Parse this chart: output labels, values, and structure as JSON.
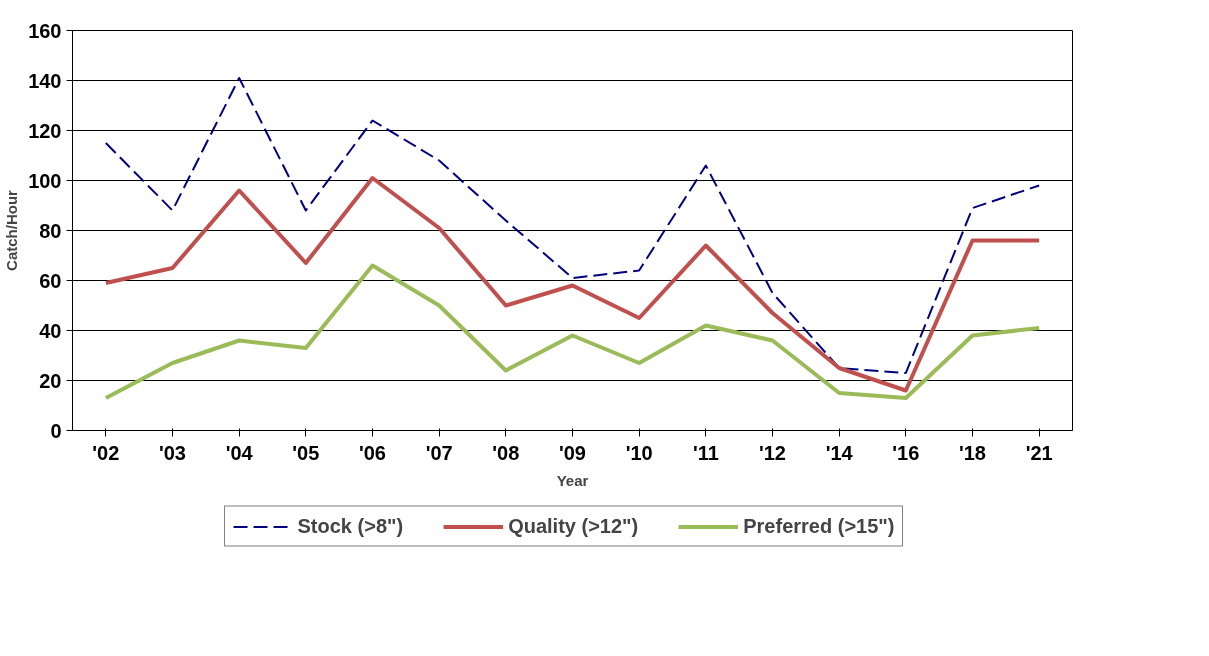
{
  "chart_data": {
    "type": "line",
    "xlabel": "Year",
    "ylabel": "Catch/Hour",
    "categories": [
      "'02",
      "'03",
      "'04",
      "'05",
      "'06",
      "'07",
      "'08",
      "'09",
      "'10",
      "'11",
      "'12",
      "'14",
      "'16",
      "'18",
      "'21"
    ],
    "series": [
      {
        "name": "Stock (>8\")",
        "color": "#000080",
        "line_style": "dashed",
        "values": [
          115,
          88,
          141,
          88,
          124,
          108,
          84,
          61,
          64,
          106,
          55,
          25,
          23,
          89,
          98
        ]
      },
      {
        "name": "Quality (>12\")",
        "color": "#c0504d",
        "line_style": "solid",
        "values": [
          59,
          65,
          96,
          67,
          101,
          81,
          50,
          58,
          45,
          74,
          47,
          25,
          16,
          76,
          76
        ]
      },
      {
        "name": "Preferred (>15\")",
        "color": "#9bbb59",
        "line_style": "solid",
        "values": [
          13,
          27,
          36,
          33,
          66,
          50,
          24,
          38,
          27,
          42,
          36,
          15,
          13,
          38,
          41
        ]
      }
    ],
    "ylim": [
      0,
      160
    ],
    "yticks": [
      0,
      20,
      40,
      60,
      80,
      100,
      120,
      140,
      160
    ],
    "grid": "y",
    "legend": "bottom",
    "marker": "none"
  }
}
